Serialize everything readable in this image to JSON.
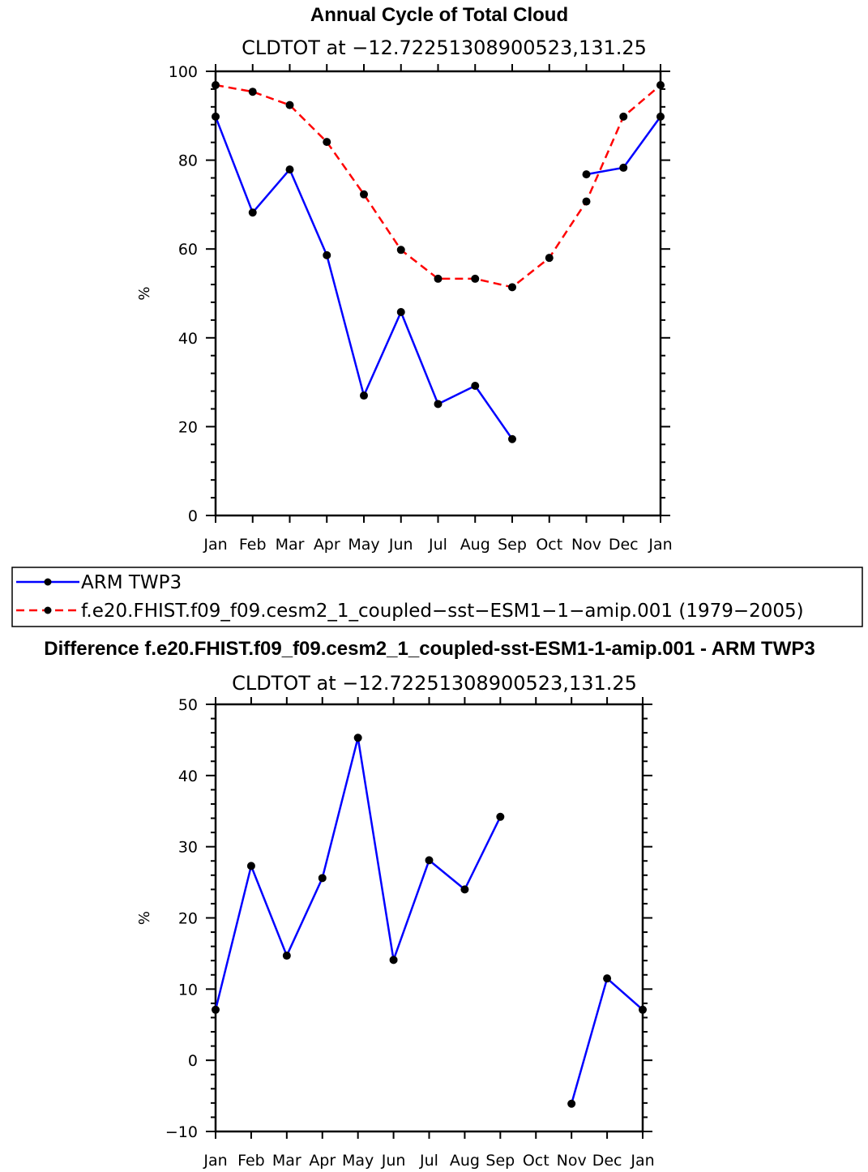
{
  "chart_data": [
    {
      "type": "line",
      "title": "Annual Cycle of Total Cloud",
      "subtitle": "CLDTOT at −12.72251308900523,131.25",
      "ylabel": "%",
      "xlabel": "",
      "ylim": [
        0,
        100
      ],
      "yticks": [
        0,
        20,
        40,
        60,
        80,
        100
      ],
      "categories": [
        "Jan",
        "Feb",
        "Mar",
        "Apr",
        "May",
        "Jun",
        "Jul",
        "Aug",
        "Sep",
        "Oct",
        "Nov",
        "Dec",
        "Jan"
      ],
      "series": [
        {
          "name": "ARM TWP3",
          "color": "#0000ff",
          "dash": "solid",
          "values": [
            89.8,
            68.2,
            77.9,
            58.6,
            27.0,
            45.8,
            25.1,
            29.2,
            17.2,
            null,
            76.8,
            78.3,
            89.8
          ]
        },
        {
          "name": "f.e20.FHIST.f09_f09.cesm2_1_coupled−sst−ESM1−1−amip.001 (1979−2005)",
          "color": "#ff0000",
          "dash": "dashed",
          "values": [
            96.9,
            95.4,
            92.4,
            84.1,
            72.3,
            59.8,
            53.3,
            53.3,
            51.4,
            58.0,
            70.7,
            89.8,
            96.9
          ]
        }
      ],
      "legend": [
        "ARM TWP3",
        "f.e20.FHIST.f09_f09.cesm2_1_coupled−sst−ESM1−1−amip.001 (1979−2005)"
      ]
    },
    {
      "type": "line",
      "title": "Difference f.e20.FHIST.f09_f09.cesm2_1_coupled-sst-ESM1-1-amip.001 - ARM TWP3",
      "subtitle": "CLDTOT at −12.72251308900523,131.25",
      "ylabel": "%",
      "xlabel": "",
      "ylim": [
        -10,
        50
      ],
      "yticks": [
        -10,
        0,
        10,
        20,
        30,
        40,
        50
      ],
      "ytick_labels": [
        "−10",
        "0",
        "10",
        "20",
        "30",
        "40",
        "50"
      ],
      "categories": [
        "Jan",
        "Feb",
        "Mar",
        "Apr",
        "May",
        "Jun",
        "Jul",
        "Aug",
        "Sep",
        "Oct",
        "Nov",
        "Dec",
        "Jan"
      ],
      "series": [
        {
          "name": "Difference",
          "color": "#0000ff",
          "dash": "solid",
          "values": [
            7.1,
            27.3,
            14.7,
            25.6,
            45.3,
            14.1,
            28.1,
            24.0,
            34.2,
            null,
            -6.1,
            11.5,
            7.1
          ]
        }
      ]
    }
  ]
}
